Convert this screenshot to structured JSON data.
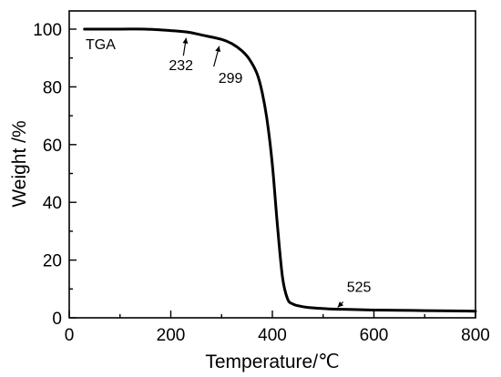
{
  "chart_data": {
    "type": "line",
    "xlabel": "Temperature/℃",
    "ylabel": "Weight /%",
    "xlim": [
      0,
      800
    ],
    "ylim": [
      0,
      105
    ],
    "xticks": [
      0,
      200,
      400,
      600,
      800
    ],
    "yticks": [
      0,
      20,
      40,
      60,
      80,
      100
    ],
    "grid": false,
    "legend": {
      "text": "TGA",
      "placement": "top-left"
    },
    "series": [
      {
        "name": "TGA",
        "color": "#000000",
        "x": [
          30,
          100,
          150,
          200,
          232,
          260,
          299,
          320,
          340,
          355,
          370,
          380,
          390,
          400,
          410,
          420,
          430,
          440,
          450,
          470,
          500,
          525,
          550,
          600,
          650,
          700,
          750,
          800
        ],
        "y": [
          100,
          100,
          100,
          99.5,
          99.0,
          98.0,
          96.5,
          95.0,
          92.5,
          89.5,
          84.5,
          78.0,
          68.0,
          53.0,
          32.0,
          14.0,
          6.5,
          4.8,
          4.2,
          3.6,
          3.2,
          3.0,
          2.9,
          2.7,
          2.6,
          2.5,
          2.4,
          2.3
        ]
      }
    ],
    "annotations": [
      {
        "label": "232",
        "x": 232,
        "y": 99.0
      },
      {
        "label": "299",
        "x": 299,
        "y": 96.5
      },
      {
        "label": "525",
        "x": 525,
        "y": 3.0
      }
    ]
  }
}
